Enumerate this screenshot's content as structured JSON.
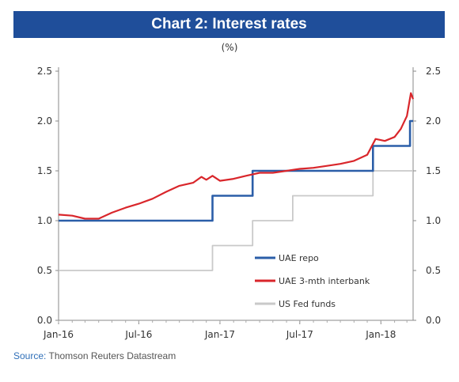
{
  "title": "Chart 2: Interest rates",
  "source": {
    "label": "Source:",
    "text": "Thomson Reuters Datastream"
  },
  "colors": {
    "title_bg": "#1f4e9a",
    "uae_repo": "#2b5ea8",
    "uae_interbank": "#d9262b",
    "us_fed": "#c9c9c9"
  },
  "chart_data": {
    "type": "line",
    "unit_label": "(%)",
    "x_ticks": [
      "Jan-16",
      "Jul-16",
      "Jan-17",
      "Jul-17",
      "Jan-18"
    ],
    "x_range": [
      "2016-01-01",
      "2018-03-15"
    ],
    "y_range": [
      0.0,
      2.5
    ],
    "y_ticks": [
      "0.0",
      "0.5",
      "1.0",
      "1.5",
      "2.0",
      "2.5"
    ],
    "y_ticks_right": [
      "0.0",
      "0.5",
      "1.0",
      "1.5",
      "2.0",
      "2.5"
    ],
    "grid": false,
    "legend_position": "bottom-right",
    "series": [
      {
        "name": "UAE repo",
        "style": "step",
        "points": [
          [
            "2016-01-01",
            1.0
          ],
          [
            "2016-12-15",
            1.0
          ],
          [
            "2016-12-15",
            1.25
          ],
          [
            "2017-03-16",
            1.25
          ],
          [
            "2017-03-16",
            1.5
          ],
          [
            "2017-12-14",
            1.5
          ],
          [
            "2017-12-14",
            1.75
          ],
          [
            "2018-03-08",
            1.75
          ],
          [
            "2018-03-08",
            2.0
          ],
          [
            "2018-03-15",
            2.0
          ]
        ]
      },
      {
        "name": "UAE 3-mth interbank",
        "style": "line",
        "points": [
          [
            "2016-01-01",
            1.06
          ],
          [
            "2016-02-01",
            1.05
          ],
          [
            "2016-03-01",
            1.02
          ],
          [
            "2016-04-01",
            1.02
          ],
          [
            "2016-05-01",
            1.08
          ],
          [
            "2016-06-01",
            1.13
          ],
          [
            "2016-07-01",
            1.17
          ],
          [
            "2016-08-01",
            1.22
          ],
          [
            "2016-09-01",
            1.29
          ],
          [
            "2016-10-01",
            1.35
          ],
          [
            "2016-11-01",
            1.38
          ],
          [
            "2016-11-20",
            1.44
          ],
          [
            "2016-12-01",
            1.41
          ],
          [
            "2016-12-15",
            1.45
          ],
          [
            "2017-01-01",
            1.4
          ],
          [
            "2017-02-01",
            1.42
          ],
          [
            "2017-03-01",
            1.45
          ],
          [
            "2017-04-01",
            1.48
          ],
          [
            "2017-05-01",
            1.48
          ],
          [
            "2017-06-01",
            1.5
          ],
          [
            "2017-07-01",
            1.52
          ],
          [
            "2017-08-01",
            1.53
          ],
          [
            "2017-09-01",
            1.55
          ],
          [
            "2017-10-01",
            1.57
          ],
          [
            "2017-11-01",
            1.6
          ],
          [
            "2017-12-01",
            1.66
          ],
          [
            "2017-12-20",
            1.82
          ],
          [
            "2018-01-10",
            1.8
          ],
          [
            "2018-02-01",
            1.84
          ],
          [
            "2018-02-15",
            1.92
          ],
          [
            "2018-03-01",
            2.05
          ],
          [
            "2018-03-10",
            2.28
          ],
          [
            "2018-03-15",
            2.22
          ]
        ]
      },
      {
        "name": "US Fed funds",
        "style": "step",
        "points": [
          [
            "2016-01-01",
            0.5
          ],
          [
            "2016-12-15",
            0.5
          ],
          [
            "2016-12-15",
            0.75
          ],
          [
            "2017-03-16",
            0.75
          ],
          [
            "2017-03-16",
            1.0
          ],
          [
            "2017-06-15",
            1.0
          ],
          [
            "2017-06-15",
            1.25
          ],
          [
            "2017-12-14",
            1.25
          ],
          [
            "2017-12-14",
            1.5
          ],
          [
            "2018-03-15",
            1.5
          ]
        ]
      }
    ]
  }
}
